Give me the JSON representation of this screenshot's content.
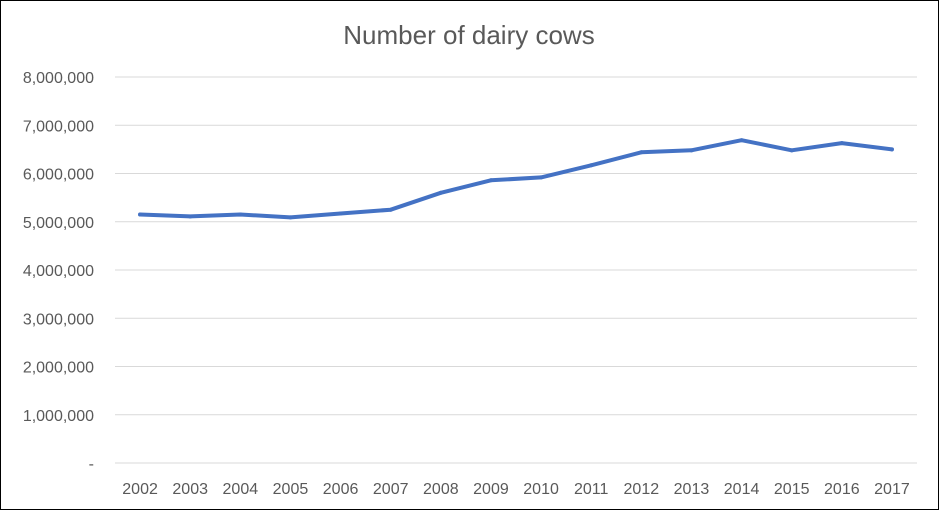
{
  "chart_data": {
    "type": "line",
    "title": "Number of dairy cows",
    "xlabel": "",
    "ylabel": "",
    "categories": [
      "2002",
      "2003",
      "2004",
      "2005",
      "2006",
      "2007",
      "2008",
      "2009",
      "2010",
      "2011",
      "2012",
      "2013",
      "2014",
      "2015",
      "2016",
      "2017"
    ],
    "series": [
      {
        "values": [
          5150000,
          5110000,
          5150000,
          5090000,
          5170000,
          5250000,
          5600000,
          5860000,
          5920000,
          6170000,
          6440000,
          6480000,
          6690000,
          6480000,
          6630000,
          6500000
        ]
      }
    ],
    "ylim": [
      0,
      8000000
    ],
    "y_ticks": [
      {
        "value": 0,
        "label": "-"
      },
      {
        "value": 1000000,
        "label": "1,000,000"
      },
      {
        "value": 2000000,
        "label": "2,000,000"
      },
      {
        "value": 3000000,
        "label": "3,000,000"
      },
      {
        "value": 4000000,
        "label": "4,000,000"
      },
      {
        "value": 5000000,
        "label": "5,000,000"
      },
      {
        "value": 6000000,
        "label": "6,000,000"
      },
      {
        "value": 7000000,
        "label": "7,000,000"
      },
      {
        "value": 8000000,
        "label": "8,000,000"
      }
    ],
    "grid": true,
    "legend": "none",
    "colors": {
      "line": "#4472c4",
      "grid": "#d9d9d9",
      "text": "#595959",
      "border": "#000000"
    }
  }
}
